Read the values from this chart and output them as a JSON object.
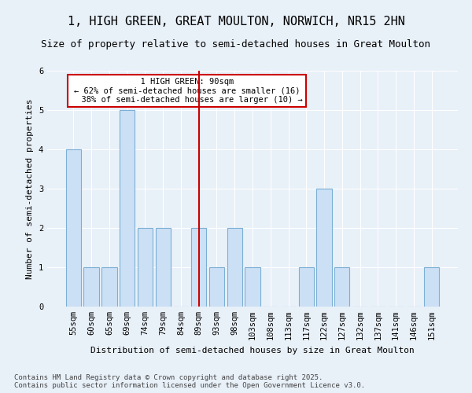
{
  "title": "1, HIGH GREEN, GREAT MOULTON, NORWICH, NR15 2HN",
  "subtitle": "Size of property relative to semi-detached houses in Great Moulton",
  "xlabel": "Distribution of semi-detached houses by size in Great Moulton",
  "ylabel": "Number of semi-detached properties",
  "footnote": "Contains HM Land Registry data © Crown copyright and database right 2025.\nContains public sector information licensed under the Open Government Licence v3.0.",
  "categories": [
    "55sqm",
    "60sqm",
    "65sqm",
    "69sqm",
    "74sqm",
    "79sqm",
    "84sqm",
    "89sqm",
    "93sqm",
    "98sqm",
    "103sqm",
    "108sqm",
    "113sqm",
    "117sqm",
    "122sqm",
    "127sqm",
    "132sqm",
    "137sqm",
    "141sqm",
    "146sqm",
    "151sqm"
  ],
  "values": [
    4,
    1,
    1,
    5,
    2,
    2,
    0,
    2,
    1,
    2,
    1,
    0,
    0,
    1,
    3,
    1,
    0,
    0,
    0,
    0,
    1
  ],
  "bar_color": "#cce0f5",
  "bar_edge_color": "#7bafd4",
  "highlight_index": 7,
  "highlight_line_color": "#cc0000",
  "highlight_label": "1 HIGH GREEN: 90sqm",
  "pct_smaller": 62,
  "pct_larger": 38,
  "n_smaller": 16,
  "n_larger": 10,
  "ylim": [
    0,
    6
  ],
  "yticks": [
    0,
    1,
    2,
    3,
    4,
    5,
    6
  ],
  "bg_color": "#e8f0f8",
  "grid_color": "#ffffff",
  "annotation_box_color": "#ffffff",
  "annotation_box_edge": "#cc0000",
  "title_fontsize": 11,
  "subtitle_fontsize": 9,
  "axis_label_fontsize": 8,
  "tick_fontsize": 7.5,
  "annotation_fontsize": 7.5,
  "footnote_fontsize": 6.5
}
